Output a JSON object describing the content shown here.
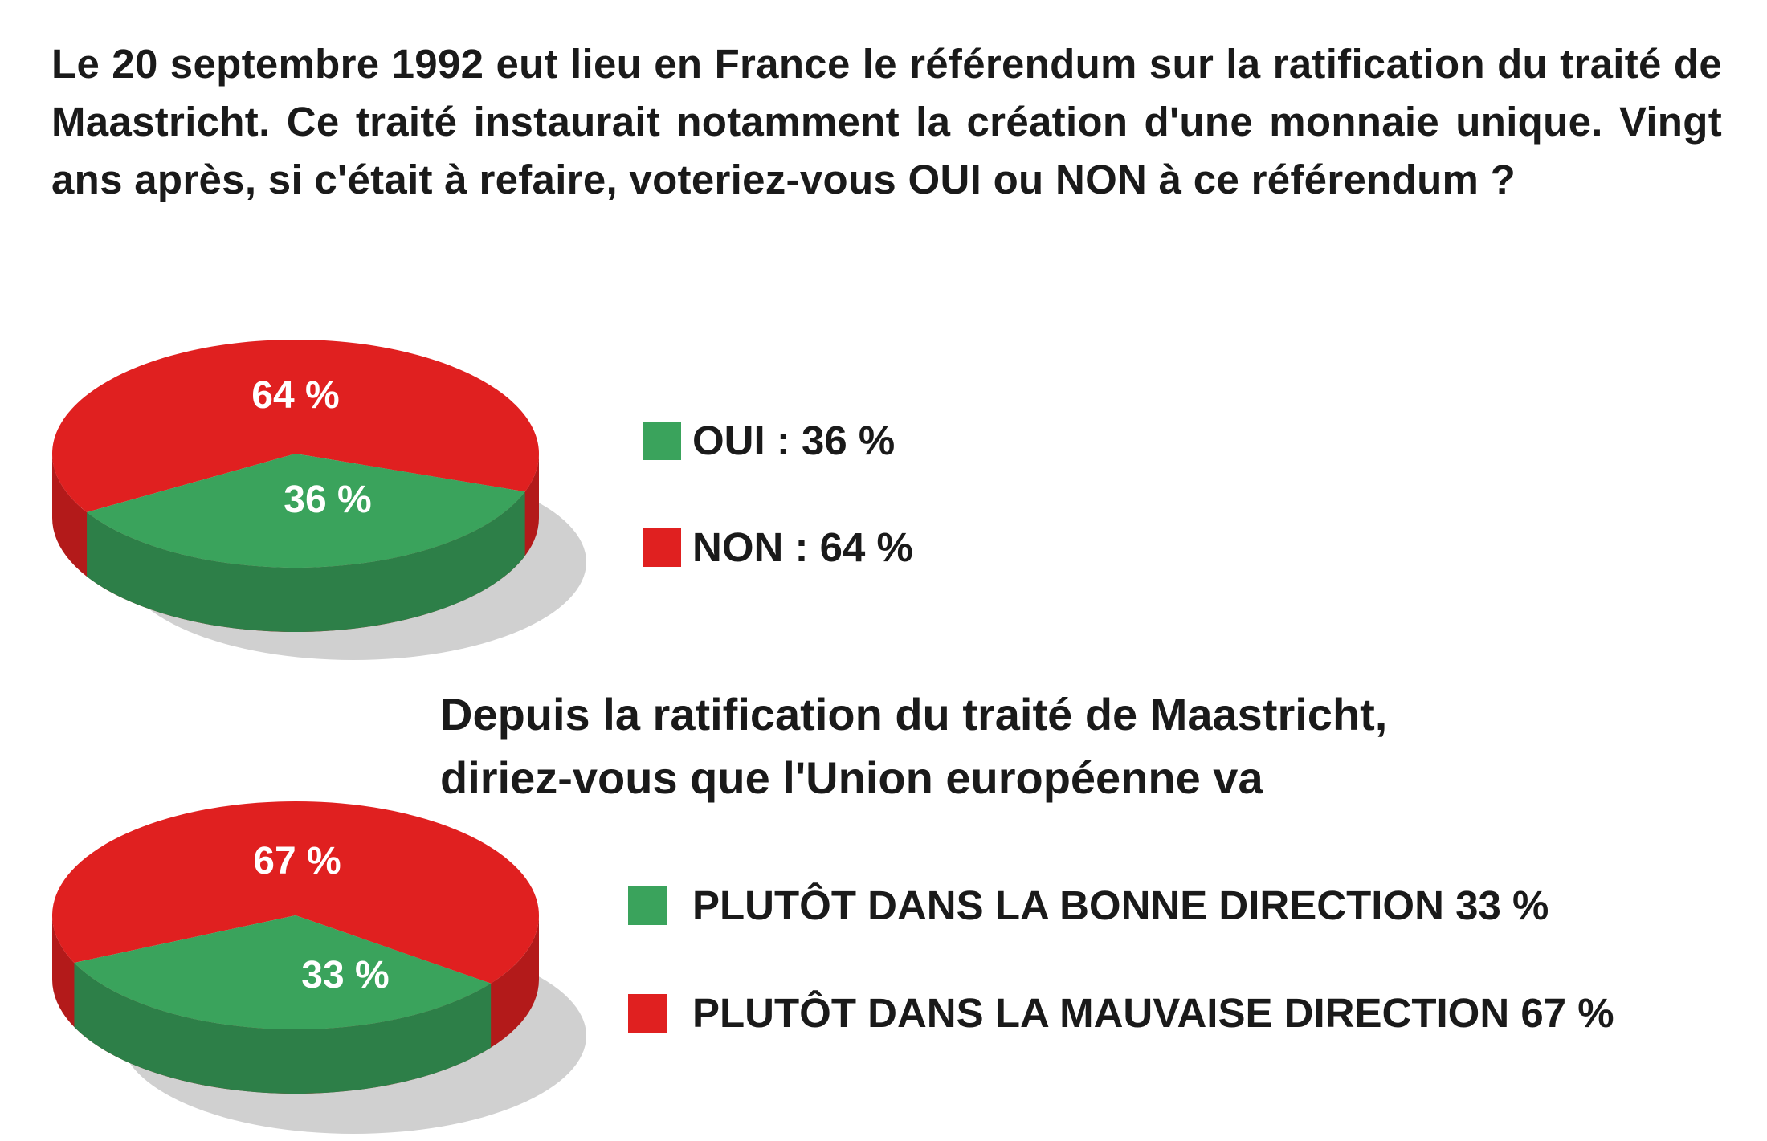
{
  "question1": "Le 20 septembre 1992 eut lieu en France le référendum sur la ratification du traité de Maastricht. Ce traité instaurait notamment la création d'une monnaie unique. Vingt ans après, si c'était à refaire, voteriez-vous OUI ou NON à ce référendum ?",
  "question2_line1": "Depuis la ratification du traité de Maastricht,",
  "question2_line2": "diriez-vous que l'Union européenne va",
  "colors": {
    "green": "#3aa35c",
    "red": "#e02020"
  },
  "chart_data": [
    {
      "type": "pie",
      "title": "",
      "slices": [
        {
          "label": "OUI : 36 %",
          "value": 36,
          "data_label": "36 %",
          "color": "#3aa35c"
        },
        {
          "label": "NON : 64 %",
          "value": 64,
          "data_label": "64 %",
          "color": "#e02020"
        }
      ],
      "legend": "right"
    },
    {
      "type": "pie",
      "title": "",
      "slices": [
        {
          "label": "PLUTÔT DANS LA BONNE DIRECTION 33 %",
          "value": 33,
          "data_label": "33 %",
          "color": "#3aa35c"
        },
        {
          "label": "PLUTÔT DANS LA MAUVAISE DIRECTION 67 %",
          "value": 67,
          "data_label": "67 %",
          "color": "#e02020"
        }
      ],
      "legend": "right"
    }
  ]
}
